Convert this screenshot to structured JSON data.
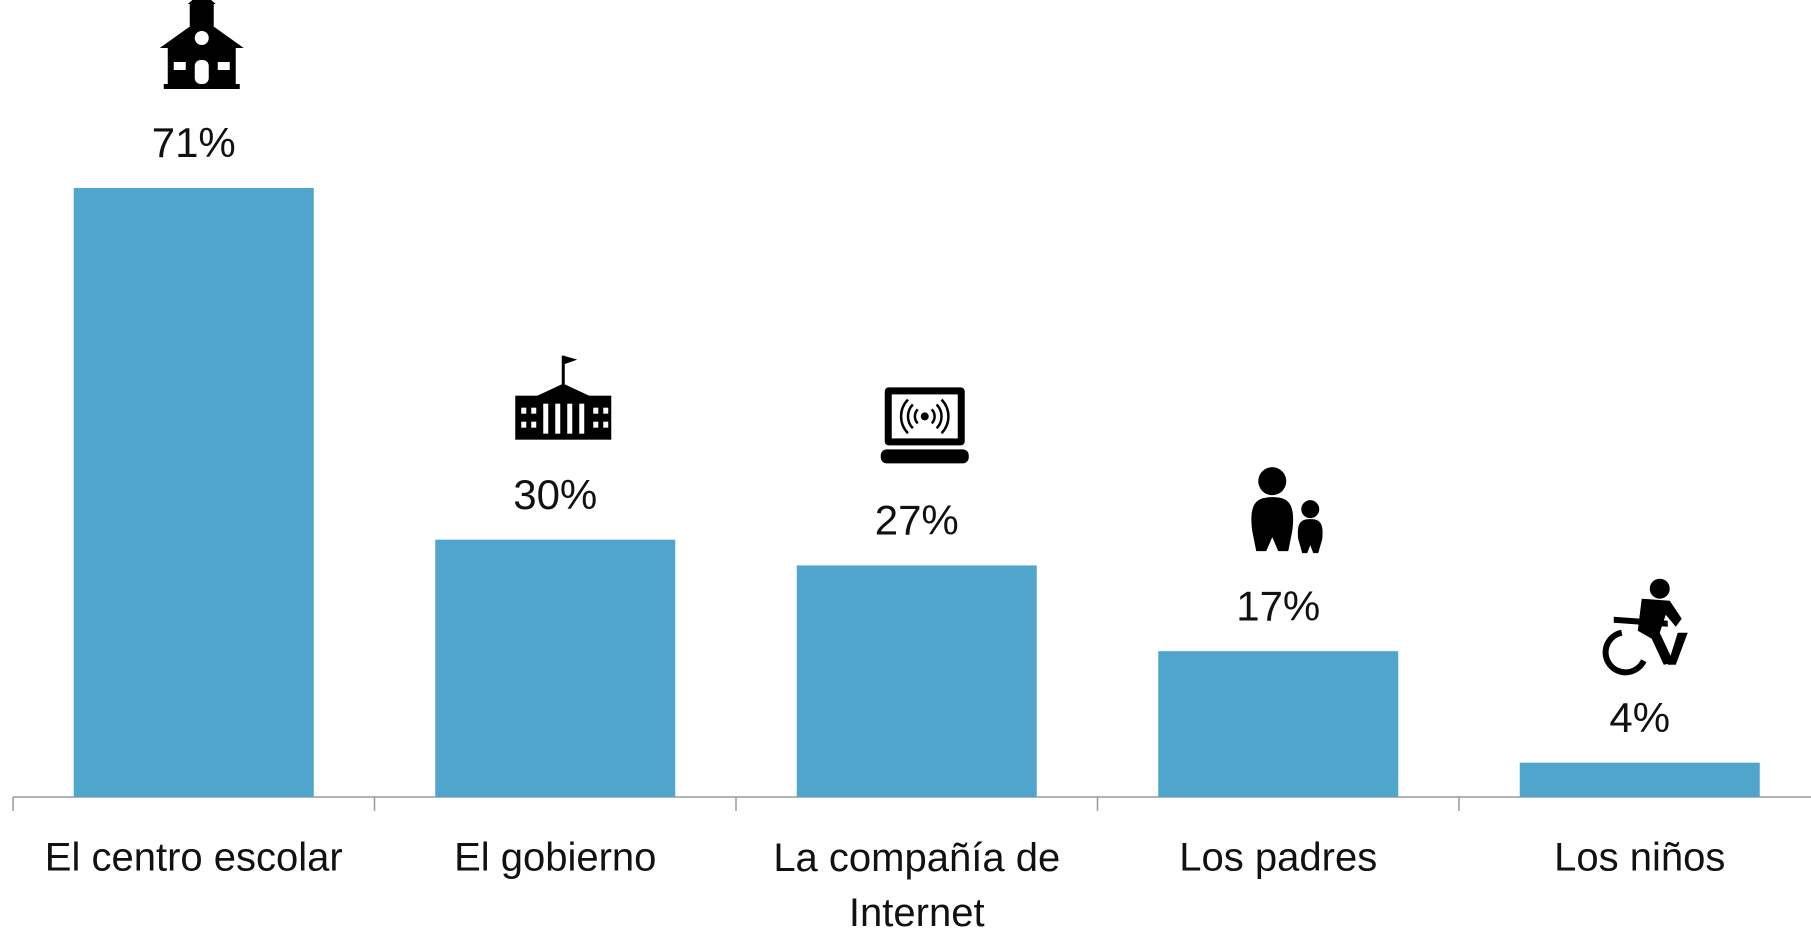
{
  "chart_data": {
    "type": "bar",
    "categories": [
      "El centro escolar",
      "El gobierno",
      "La compañía de Internet",
      "Los padres",
      "Los niños"
    ],
    "values": [
      71,
      30,
      27,
      17,
      4
    ],
    "value_labels": [
      "71%",
      "30%",
      "27%",
      "17%",
      "4%"
    ],
    "color": "#4fa5cc"
  }
}
